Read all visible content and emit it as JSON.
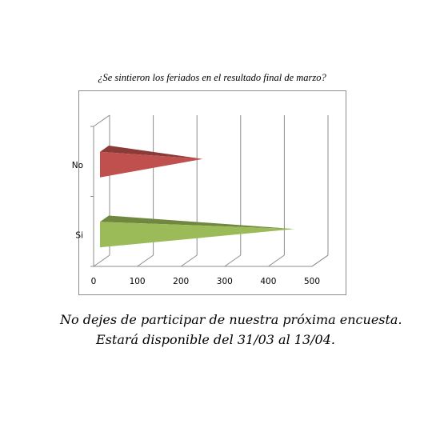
{
  "chart_data": {
    "type": "bar",
    "orientation": "horizontal",
    "title": "¿Se sintieron los feriados en el resultado final de marzo?",
    "categories": [
      "No",
      "Si"
    ],
    "values": [
      250,
      460
    ],
    "xlim": [
      0,
      500
    ],
    "xticks": [
      0,
      100,
      200,
      300,
      400,
      500
    ],
    "grid": true,
    "colors": {
      "No": "#c0504d",
      "Si": "#9bbb59"
    }
  },
  "footer": {
    "line1": "No dejes de participar de nuestra próxima encuesta.",
    "line2": "Estará disponible del 31/03 al 13/04."
  }
}
